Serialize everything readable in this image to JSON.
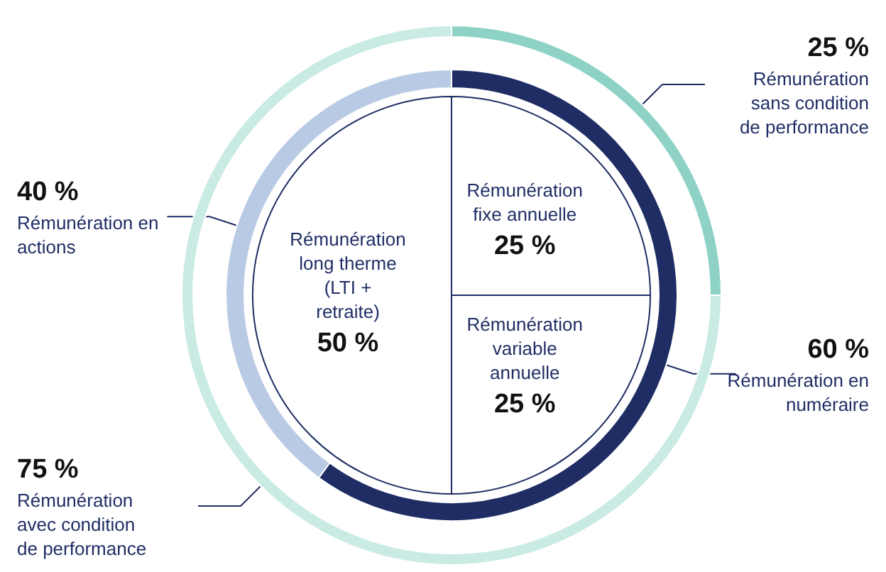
{
  "chart_data": [
    {
      "type": "pie",
      "categories": [
        "Rémunération fixe annuelle",
        "Rémunération variable annuelle",
        "Rémunération long therme (LTI + retraite)"
      ],
      "values": [
        25,
        25,
        50
      ],
      "colors": [
        "#ffffff",
        "#ffffff",
        "#ffffff"
      ],
      "value_labels": [
        "25 %",
        "25 %",
        "50 %"
      ]
    },
    {
      "type": "donut",
      "categories": [
        "Rémunération en numéraire",
        "Rémunération en actions"
      ],
      "values": [
        60,
        40
      ],
      "colors": [
        "#1f2d64",
        "#b9cbe4"
      ],
      "value_labels": [
        "60 %",
        "40 %"
      ]
    },
    {
      "type": "donut",
      "categories": [
        "Rémunération sans condition de performance",
        "Rémunération avec condition de performance"
      ],
      "values": [
        25,
        75
      ],
      "colors": [
        "#8ed2c6",
        "#c9ebe3"
      ],
      "value_labels": [
        "25 %",
        "75 %"
      ]
    }
  ]
}
